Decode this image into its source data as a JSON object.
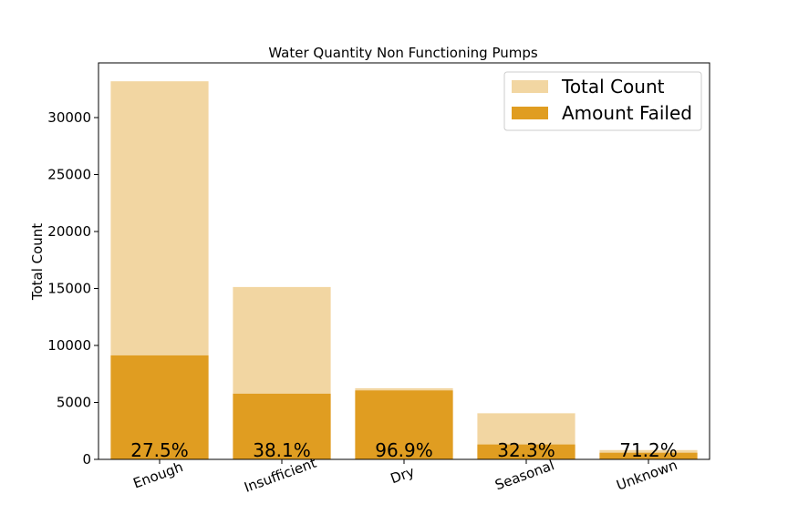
{
  "chart_data": {
    "type": "bar",
    "title": "Water Quantity Non Functioning Pumps",
    "xlabel": "",
    "ylabel": "Total Count",
    "categories": [
      "Enough",
      "Insufficient",
      "Dry",
      "Seasonal",
      "Unknown"
    ],
    "series": [
      {
        "name": "Total Count",
        "color": "#f2d6a2",
        "values": [
          33186,
          15129,
          6246,
          4050,
          817
        ]
      },
      {
        "name": "Amount Failed",
        "color": "#e09d21",
        "values": [
          9126,
          5764,
          6052,
          1308,
          582
        ]
      }
    ],
    "percent_labels": [
      "27.5%",
      "38.1%",
      "96.9%",
      "32.3%",
      "71.2%"
    ],
    "ylim": [
      0,
      34800
    ],
    "yticks": [
      0,
      5000,
      10000,
      15000,
      20000,
      25000,
      30000
    ],
    "ytick_labels": [
      "0",
      "5000",
      "10000",
      "15000",
      "20000",
      "25000",
      "30000"
    ],
    "grid": false,
    "legend_position": "top-right"
  }
}
